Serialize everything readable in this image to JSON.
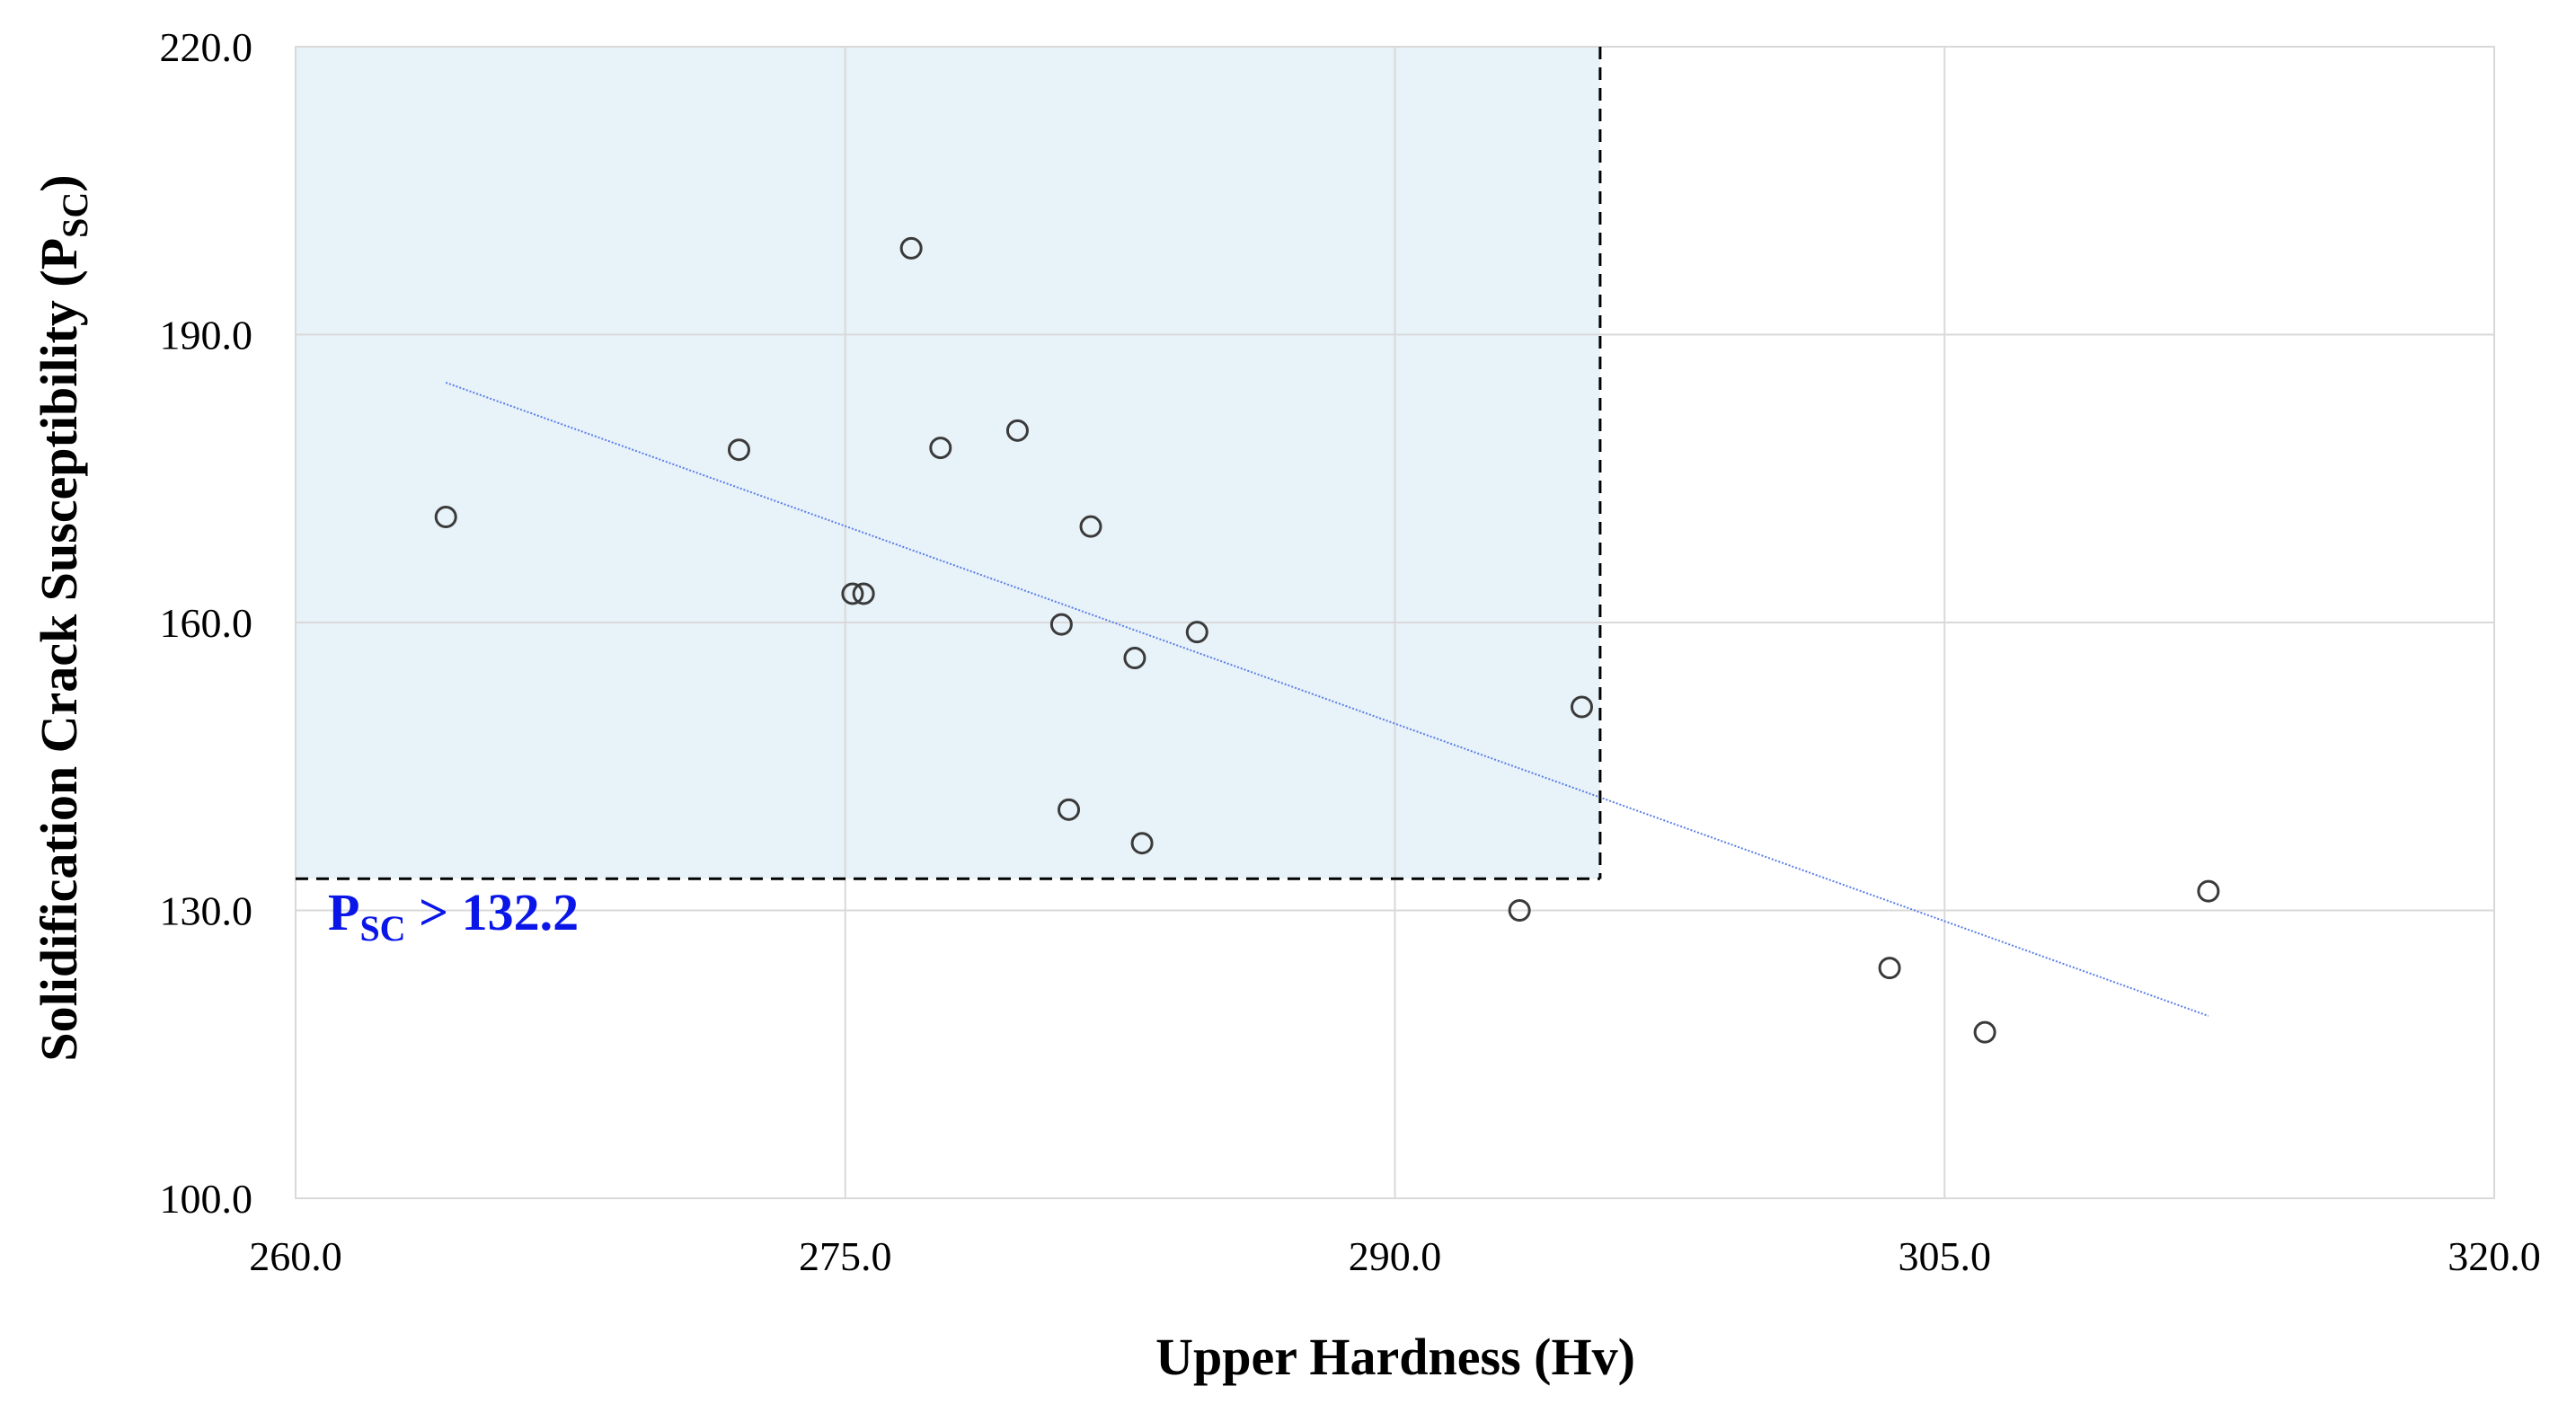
{
  "chart_data": {
    "type": "scatter",
    "xlabel": "Upper Hardness (Hv)",
    "ylabel": "Solidification Crack Susceptibility (P",
    "ylabel_sub": "SC",
    "ylabel_end": ")",
    "xlim": [
      260.0,
      320.0
    ],
    "ylim": [
      100.0,
      220.0
    ],
    "x_ticks": [
      "260.0",
      "275.0",
      "290.0",
      "305.0",
      "320.0"
    ],
    "y_ticks": [
      "100.0",
      "130.0",
      "160.0",
      "190.0",
      "220.0"
    ],
    "x_tick_values": [
      260,
      275,
      290,
      305,
      320
    ],
    "y_tick_values": [
      100,
      130,
      160,
      190,
      220
    ],
    "grid": true,
    "points": [
      {
        "x": 264.1,
        "y": 171.0
      },
      {
        "x": 272.1,
        "y": 178.0
      },
      {
        "x": 275.2,
        "y": 163.0
      },
      {
        "x": 275.5,
        "y": 163.0
      },
      {
        "x": 276.8,
        "y": 199.0
      },
      {
        "x": 277.6,
        "y": 178.2
      },
      {
        "x": 279.7,
        "y": 180.0
      },
      {
        "x": 280.9,
        "y": 159.8
      },
      {
        "x": 281.1,
        "y": 140.5
      },
      {
        "x": 281.7,
        "y": 170.0
      },
      {
        "x": 282.9,
        "y": 156.3
      },
      {
        "x": 283.1,
        "y": 137.0
      },
      {
        "x": 284.6,
        "y": 159.0
      },
      {
        "x": 293.4,
        "y": 130.0
      },
      {
        "x": 295.1,
        "y": 151.2
      },
      {
        "x": 303.5,
        "y": 124.0
      },
      {
        "x": 306.1,
        "y": 117.3
      },
      {
        "x": 312.2,
        "y": 132.0
      }
    ],
    "trendline": {
      "x": [
        264.1,
        312.2
      ],
      "y": [
        185.0,
        119.0
      ],
      "color": "#5b7fe8"
    },
    "region": {
      "x0": 260.0,
      "x1": 295.6,
      "y0": 133.3,
      "y1": 220.0,
      "fill": "#e8f2f9"
    },
    "threshold_label": {
      "main": "P",
      "sub": "SC",
      "rest": " > 132.2",
      "color": "#0a16e8"
    },
    "colors": {
      "grid": "#d9d9d9",
      "marker": "#3a3a3a",
      "threshold_line": "#000000"
    }
  }
}
